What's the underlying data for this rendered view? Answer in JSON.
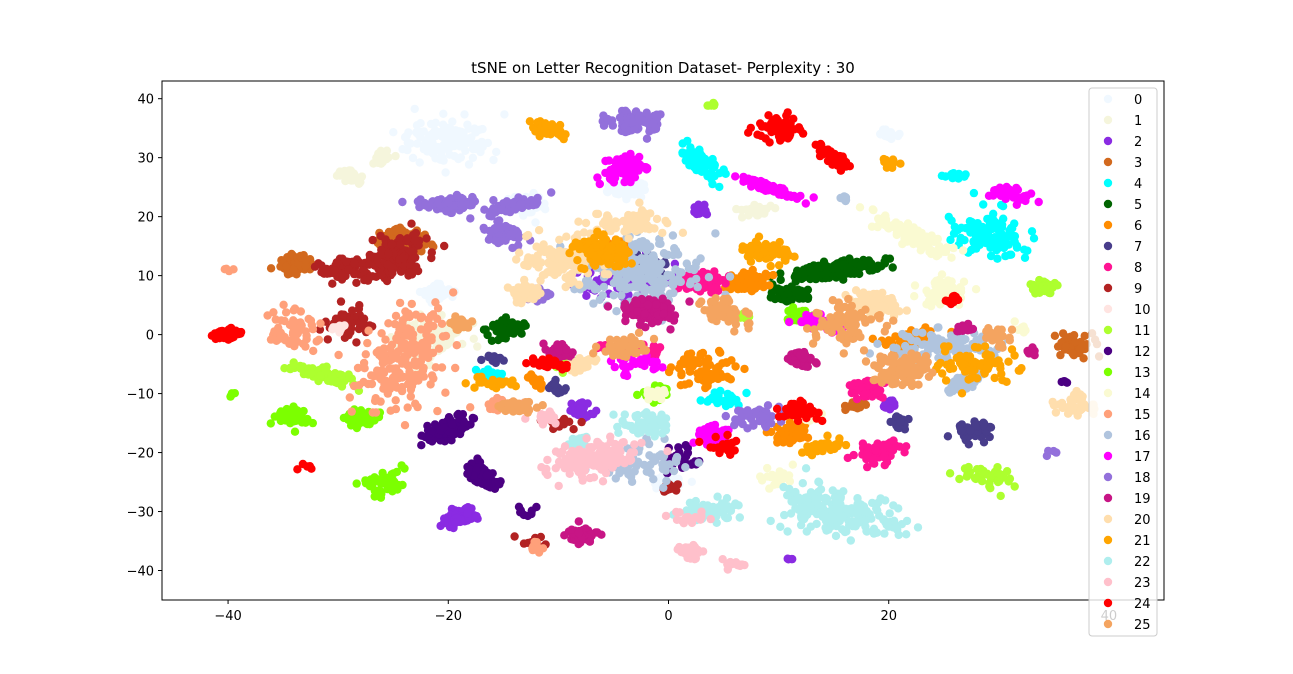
{
  "chart_data": {
    "type": "scatter",
    "title": "tSNE on Letter Recognition Dataset- Perplexity : 30",
    "xlabel": "",
    "ylabel": "",
    "xlim": [
      -46,
      45
    ],
    "ylim": [
      -45,
      43
    ],
    "xticks": [
      -40,
      -20,
      0,
      20,
      40
    ],
    "yticks": [
      -40,
      -30,
      -20,
      -10,
      0,
      10,
      20,
      30,
      40
    ],
    "legend_position": "upper-right",
    "grid": false,
    "series": [
      {
        "name": "0",
        "color": "#f0f8ff",
        "clusters": [
          [
            -20,
            33,
            1.8,
            1.8,
            140
          ],
          [
            -13,
            22,
            1.5,
            1.5,
            110
          ],
          [
            -4,
            25,
            1.8,
            1.5,
            100
          ],
          [
            20,
            34,
            0.8,
            0.6,
            25
          ],
          [
            0,
            -25,
            1.5,
            1.2,
            60
          ],
          [
            -21,
            7,
            1.2,
            1.2,
            60
          ]
        ]
      },
      {
        "name": "1",
        "color": "#f5f5dc",
        "clusters": [
          [
            -22,
            -1,
            2.2,
            2.5,
            160
          ],
          [
            -26,
            30,
            1.2,
            0.8,
            50
          ],
          [
            -29,
            27,
            1.0,
            0.8,
            40
          ],
          [
            -29,
            27,
            0.5,
            0.5,
            10
          ],
          [
            8,
            21,
            1.0,
            0.6,
            30
          ]
        ]
      },
      {
        "name": "2",
        "color": "#8a2be2",
        "clusters": [
          [
            -19,
            -31,
            1.8,
            1.2,
            90
          ],
          [
            -4,
            10,
            2.5,
            2.0,
            140
          ],
          [
            20,
            -12,
            1.0,
            0.8,
            40
          ],
          [
            3,
            21,
            0.6,
            0.6,
            20
          ],
          [
            11,
            -38,
            0.3,
            0.3,
            4
          ],
          [
            -8,
            -13,
            1.0,
            1.0,
            30
          ]
        ]
      },
      {
        "name": "3",
        "color": "#d2691e",
        "clusters": [
          [
            -24,
            16,
            1.6,
            2.0,
            120
          ],
          [
            -34,
            12,
            1.2,
            1.2,
            70
          ],
          [
            -33,
            12,
            1.5,
            0.6,
            50
          ],
          [
            37,
            -2,
            1.0,
            1.0,
            40
          ],
          [
            17,
            -12,
            0.8,
            0.6,
            20
          ]
        ]
      },
      {
        "name": "4",
        "color": "#00ffff",
        "clusters": [
          [
            29,
            17,
            1.8,
            2.2,
            120
          ],
          [
            3,
            29,
            1.0,
            2.5,
            80
          ],
          [
            -16,
            -7,
            1.3,
            0.5,
            35
          ],
          [
            26,
            27,
            0.5,
            0.4,
            12
          ],
          [
            5,
            -11,
            1.2,
            0.6,
            30
          ]
        ]
      },
      {
        "name": "5",
        "color": "#006400",
        "clusters": [
          [
            15,
            11,
            1.5,
            5.0,
            220
          ],
          [
            11,
            7,
            1.5,
            2.0,
            80
          ],
          [
            -15,
            1,
            1.2,
            1.5,
            50
          ]
        ]
      },
      {
        "name": "6",
        "color": "#ff8c00",
        "clusters": [
          [
            -5,
            14,
            2.0,
            1.5,
            120
          ],
          [
            7,
            9,
            1.8,
            2.5,
            130
          ],
          [
            3,
            -6,
            1.5,
            1.5,
            70
          ],
          [
            -12,
            -8,
            1.5,
            0.5,
            40
          ],
          [
            11,
            -17,
            1.5,
            1.5,
            60
          ],
          [
            22,
            -1,
            1.2,
            1.2,
            40
          ]
        ]
      },
      {
        "name": "7",
        "color": "#483d8b",
        "clusters": [
          [
            -3,
            12,
            2.0,
            2.5,
            140
          ],
          [
            28,
            -16,
            1.0,
            1.2,
            50
          ],
          [
            21,
            -15,
            1.2,
            0.8,
            50
          ],
          [
            -10,
            -9,
            0.6,
            0.6,
            15
          ],
          [
            -16,
            -4,
            0.6,
            0.6,
            15
          ]
        ]
      },
      {
        "name": "8",
        "color": "#ff1493",
        "clusters": [
          [
            3,
            9,
            1.5,
            2.5,
            110
          ],
          [
            19,
            -20,
            1.2,
            1.2,
            60
          ],
          [
            18,
            -9,
            1.2,
            0.8,
            45
          ],
          [
            -2,
            -3,
            1.0,
            1.0,
            30
          ],
          [
            -6,
            -2,
            0.5,
            0.5,
            10
          ]
        ]
      },
      {
        "name": "9",
        "color": "#b22222",
        "clusters": [
          [
            -25,
            13,
            1.8,
            2.5,
            170
          ],
          [
            -29,
            2,
            0.8,
            1.2,
            60
          ],
          [
            -30,
            11,
            1.2,
            1.0,
            50
          ],
          [
            -10,
            -15,
            0.6,
            0.6,
            15
          ],
          [
            -12,
            -35,
            0.6,
            0.6,
            15
          ],
          [
            0,
            -26,
            0.8,
            0.6,
            20
          ]
        ]
      },
      {
        "name": "10",
        "color": "#ffe4e1",
        "clusters": [
          [
            -30,
            1,
            0.5,
            0.6,
            10
          ],
          [
            -3,
            -4,
            0.6,
            0.6,
            10
          ]
        ]
      },
      {
        "name": "11",
        "color": "#adff2f",
        "clusters": [
          [
            -31,
            -7,
            2.5,
            0.8,
            90
          ],
          [
            34,
            8,
            1.2,
            1.5,
            50
          ],
          [
            29,
            -24,
            1.5,
            1.0,
            45
          ],
          [
            7,
            3,
            0.8,
            0.8,
            20
          ],
          [
            -10,
            -5,
            0.8,
            0.8,
            20
          ],
          [
            4,
            39,
            0.4,
            0.4,
            8
          ]
        ]
      },
      {
        "name": "12",
        "color": "#4b0082",
        "clusters": [
          [
            -20,
            -16,
            2.5,
            1.2,
            150
          ],
          [
            -17,
            -24,
            2.5,
            1.2,
            110
          ],
          [
            -13,
            -30,
            0.5,
            0.5,
            10
          ],
          [
            36,
            -8,
            0.3,
            0.3,
            5
          ],
          [
            1,
            -21,
            1.0,
            1.0,
            30
          ]
        ]
      },
      {
        "name": "13",
        "color": "#7cff00",
        "clusters": [
          [
            -34,
            -14,
            1.5,
            1.5,
            70
          ],
          [
            -28,
            -14,
            1.5,
            1.5,
            90
          ],
          [
            -26,
            -25,
            1.0,
            1.5,
            50
          ],
          [
            12,
            3,
            1.2,
            1.2,
            40
          ],
          [
            -1,
            -10,
            1.0,
            1.0,
            25
          ],
          [
            -39.5,
            -10,
            0.3,
            0.3,
            4
          ]
        ]
      },
      {
        "name": "14",
        "color": "#fafad2",
        "clusters": [
          [
            22,
            17,
            1.2,
            4.0,
            110
          ],
          [
            25,
            7,
            1.2,
            1.5,
            60
          ],
          [
            32,
            1,
            0.5,
            0.5,
            10
          ],
          [
            -1,
            -10,
            1.0,
            1.0,
            20
          ],
          [
            13,
            -14,
            1.0,
            1.0,
            20
          ],
          [
            10,
            -24,
            1.0,
            1.0,
            25
          ]
        ]
      },
      {
        "name": "15",
        "color": "#ffa07a",
        "clusters": [
          [
            -24,
            -4,
            2.0,
            5.0,
            200
          ],
          [
            -34,
            1,
            1.2,
            1.5,
            60
          ],
          [
            -15,
            -12,
            1.0,
            0.6,
            30
          ],
          [
            -40,
            11,
            0.3,
            0.3,
            4
          ],
          [
            -12,
            -36,
            0.5,
            0.5,
            10
          ]
        ]
      },
      {
        "name": "16",
        "color": "#b0c4de",
        "clusters": [
          [
            -3,
            11,
            4.0,
            4.0,
            220
          ],
          [
            25,
            -2,
            2.5,
            1.5,
            110
          ],
          [
            27,
            -8,
            2.5,
            0.8,
            90
          ],
          [
            -2,
            -22,
            2.0,
            1.5,
            70
          ],
          [
            16,
            23,
            0.4,
            0.4,
            8
          ]
        ]
      },
      {
        "name": "17",
        "color": "#ff00ff",
        "clusters": [
          [
            -4,
            28,
            1.5,
            2.0,
            90
          ],
          [
            9,
            25,
            2.5,
            0.5,
            80
          ],
          [
            31,
            24,
            1.5,
            1.0,
            55
          ],
          [
            -3,
            -5,
            1.0,
            0.8,
            30
          ],
          [
            4,
            -17,
            1.5,
            1.5,
            50
          ],
          [
            14,
            2,
            1.5,
            0.8,
            40
          ]
        ]
      },
      {
        "name": "18",
        "color": "#9370db",
        "clusters": [
          [
            -3,
            36,
            1.5,
            1.2,
            90
          ],
          [
            -20,
            22,
            1.5,
            3.0,
            100
          ],
          [
            -15,
            17,
            1.2,
            2.0,
            60
          ],
          [
            -14,
            22,
            2.0,
            0.8,
            60
          ],
          [
            -12,
            7,
            1.0,
            1.0,
            35
          ],
          [
            8,
            -14,
            1.5,
            1.0,
            50
          ],
          [
            35,
            -20,
            0.3,
            0.3,
            4
          ]
        ]
      },
      {
        "name": "19",
        "color": "#c71585",
        "clusters": [
          [
            -8,
            -34,
            1.5,
            1.5,
            80
          ],
          [
            -2,
            4,
            2.0,
            2.5,
            110
          ],
          [
            12,
            -4,
            1.5,
            1.0,
            50
          ],
          [
            -10,
            -3,
            1.2,
            1.0,
            40
          ],
          [
            27,
            1,
            0.6,
            0.6,
            15
          ],
          [
            33,
            -3,
            0.6,
            0.6,
            15
          ]
        ]
      },
      {
        "name": "20",
        "color": "#ffdead",
        "clusters": [
          [
            -10,
            12,
            2.0,
            2.0,
            110
          ],
          [
            -4,
            19,
            2.0,
            1.2,
            80
          ],
          [
            -13,
            7,
            1.5,
            1.2,
            70
          ],
          [
            19,
            5,
            2.0,
            1.5,
            80
          ],
          [
            37,
            -12,
            1.0,
            1.0,
            40
          ],
          [
            -8,
            -5,
            1.5,
            1.0,
            40
          ]
        ]
      },
      {
        "name": "21",
        "color": "#ffa500",
        "clusters": [
          [
            -11,
            35,
            1.5,
            1.0,
            60
          ],
          [
            -6,
            14,
            2.5,
            2.0,
            120
          ],
          [
            9,
            14,
            1.5,
            1.0,
            60
          ],
          [
            28,
            -5,
            2.0,
            1.5,
            70
          ],
          [
            14,
            -19,
            1.5,
            1.0,
            50
          ],
          [
            20,
            29,
            0.6,
            0.5,
            15
          ],
          [
            -16,
            -8,
            1.0,
            0.6,
            30
          ]
        ]
      },
      {
        "name": "22",
        "color": "#afeeee",
        "clusters": [
          [
            15,
            -30,
            4.0,
            2.5,
            200
          ],
          [
            4,
            -30,
            1.5,
            1.0,
            50
          ],
          [
            -2,
            -15,
            1.5,
            1.5,
            60
          ],
          [
            20,
            -32,
            0.8,
            0.4,
            15
          ],
          [
            -8,
            -18,
            1.0,
            0.8,
            25
          ]
        ]
      },
      {
        "name": "23",
        "color": "#ffc0cb",
        "clusters": [
          [
            -7,
            -21,
            3.0,
            2.0,
            160
          ],
          [
            2,
            -37,
            1.5,
            1.0,
            60
          ],
          [
            6,
            -39,
            0.8,
            0.5,
            15
          ],
          [
            2,
            -31,
            1.0,
            0.5,
            20
          ],
          [
            -11,
            -14,
            0.8,
            0.6,
            15
          ]
        ]
      },
      {
        "name": "24",
        "color": "#ff0000",
        "clusters": [
          [
            10,
            35,
            1.2,
            1.2,
            70
          ],
          [
            15,
            30,
            2.0,
            0.8,
            80
          ],
          [
            -40,
            0,
            1.0,
            1.5,
            60
          ],
          [
            -11,
            -5,
            1.2,
            0.5,
            30
          ],
          [
            -33,
            -22.5,
            0.3,
            0.3,
            5
          ],
          [
            12,
            -13,
            1.2,
            1.0,
            40
          ],
          [
            5,
            -19,
            0.8,
            0.8,
            20
          ],
          [
            26,
            6,
            0.6,
            0.6,
            15
          ]
        ]
      },
      {
        "name": "25",
        "color": "#f4a460",
        "clusters": [
          [
            21,
            -6,
            2.0,
            2.0,
            100
          ],
          [
            16,
            2,
            1.5,
            2.0,
            80
          ],
          [
            5,
            4,
            2.0,
            1.5,
            80
          ],
          [
            -4,
            -2,
            1.5,
            1.2,
            50
          ],
          [
            -14,
            -12,
            1.0,
            0.8,
            30
          ],
          [
            -19,
            2,
            1.0,
            1.0,
            30
          ],
          [
            30,
            0,
            0.8,
            0.8,
            20
          ]
        ]
      }
    ]
  }
}
